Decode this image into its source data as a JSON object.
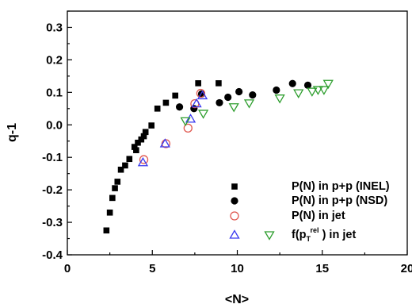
{
  "chart_data": {
    "type": "scatter",
    "title": "",
    "xlabel": "<N>",
    "ylabel": "q-1",
    "xlim": [
      0,
      20
    ],
    "ylim": [
      -0.4,
      0.35
    ],
    "xticks": [
      "0",
      "5",
      "10",
      "15",
      "20"
    ],
    "yticks": [
      "-0.4",
      "-0.3",
      "-0.2",
      "-0.1",
      "0.0",
      "0.1",
      "0.2",
      "0.3"
    ],
    "grid": false,
    "legend_position": "bottom-right",
    "series": [
      {
        "name": "P(N) in p+p (INEL)",
        "marker": "filled-square",
        "color": "#000000",
        "points": [
          [
            2.3,
            -0.325
          ],
          [
            2.5,
            -0.27
          ],
          [
            2.65,
            -0.225
          ],
          [
            2.8,
            -0.195
          ],
          [
            2.95,
            -0.175
          ],
          [
            3.15,
            -0.138
          ],
          [
            3.4,
            -0.125
          ],
          [
            3.65,
            -0.105
          ],
          [
            3.95,
            -0.068
          ],
          [
            4.05,
            -0.078
          ],
          [
            4.15,
            -0.055
          ],
          [
            4.35,
            -0.045
          ],
          [
            4.5,
            -0.035
          ],
          [
            4.6,
            -0.022
          ],
          [
            4.95,
            -0.002
          ],
          [
            5.3,
            0.05
          ],
          [
            5.8,
            0.068
          ],
          [
            6.35,
            0.09
          ],
          [
            7.7,
            0.128
          ],
          [
            8.9,
            0.128
          ]
        ]
      },
      {
        "name": "P(N) in p+p (NSD)",
        "marker": "filled-circle",
        "color": "#000000",
        "points": [
          [
            6.6,
            0.055
          ],
          [
            7.45,
            0.05
          ],
          [
            7.9,
            0.095
          ],
          [
            8.95,
            0.068
          ],
          [
            9.45,
            0.085
          ],
          [
            10.1,
            0.102
          ],
          [
            10.9,
            0.092
          ],
          [
            12.3,
            0.107
          ],
          [
            13.25,
            0.127
          ],
          [
            14.15,
            0.122
          ]
        ]
      },
      {
        "name": "P(N) in jet",
        "marker": "open-circle",
        "color": "#e0574f",
        "points": [
          [
            4.5,
            -0.107
          ],
          [
            5.8,
            -0.058
          ],
          [
            7.1,
            -0.01
          ],
          [
            7.85,
            0.097
          ],
          [
            7.5,
            0.065
          ]
        ]
      },
      {
        "name": "",
        "marker": "open-triangle-up",
        "color": "#3a3af0",
        "points": [
          [
            4.45,
            -0.116
          ],
          [
            5.75,
            -0.058
          ],
          [
            7.25,
            0.018
          ],
          [
            7.95,
            0.09
          ],
          [
            7.6,
            0.065
          ]
        ]
      },
      {
        "name": "in jet",
        "marker": "open-triangle-down",
        "color": "#2e9e2e",
        "points": [
          [
            6.95,
            0.012
          ],
          [
            8.0,
            0.035
          ],
          [
            9.8,
            0.055
          ],
          [
            10.7,
            0.067
          ],
          [
            12.5,
            0.082
          ],
          [
            13.6,
            0.098
          ],
          [
            14.4,
            0.103
          ],
          [
            14.75,
            0.108
          ],
          [
            15.1,
            0.108
          ],
          [
            15.35,
            0.127
          ]
        ]
      }
    ],
    "legend": [
      {
        "label": "P(N) in p+p (INEL)",
        "marker": "filled-square",
        "color": "#000000"
      },
      {
        "label": "P(N) in p+p (NSD)",
        "marker": "filled-circle",
        "color": "#000000"
      },
      {
        "label": "P(N) in jet",
        "marker": "open-circle",
        "color": "#e0574f"
      },
      {
        "label": "",
        "marker": "open-triangle-up",
        "color": "#3a3af0"
      },
      {
        "label_parts": {
          "main": "f(p",
          "sub": "T",
          "sup": "rel",
          "tail": " ) in jet"
        },
        "marker": "open-triangle-down",
        "color": "#2e9e2e"
      }
    ]
  }
}
